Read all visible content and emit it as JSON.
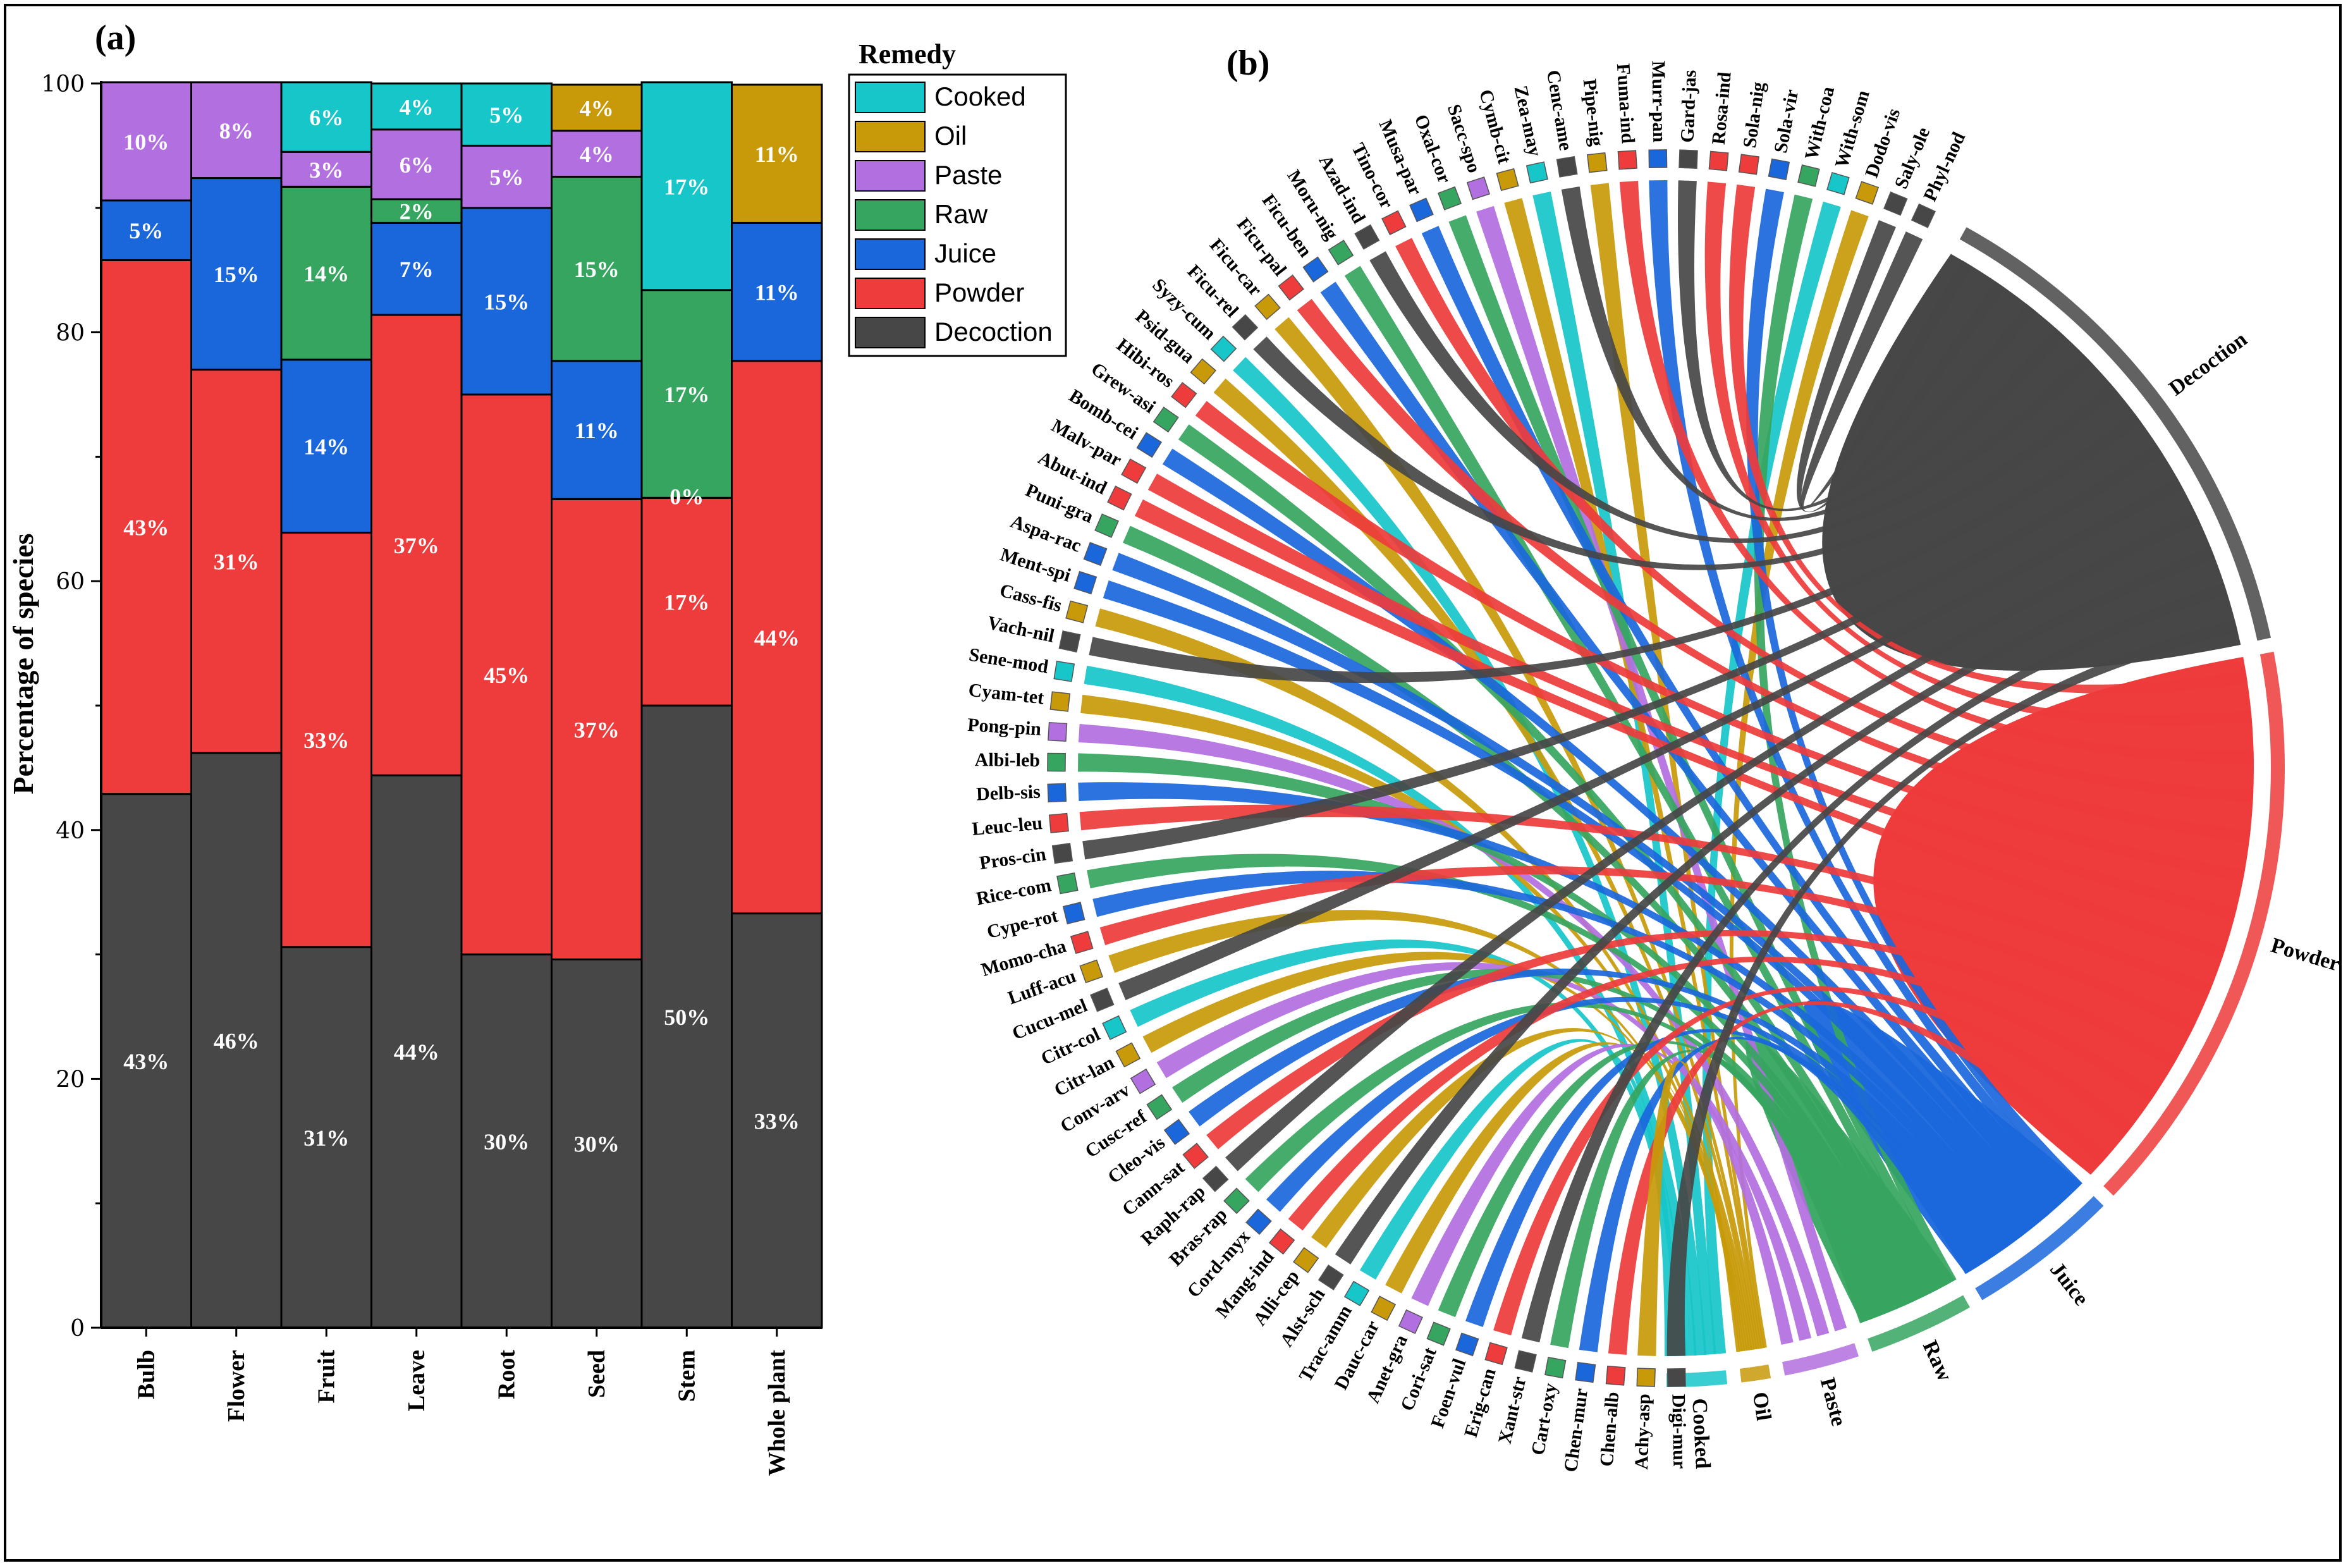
{
  "panel_a": {
    "label": "(a)"
  },
  "panel_b": {
    "label": "(b)"
  },
  "colors": {
    "Cooked": "#17C6C9",
    "Oil": "#C89A0A",
    "Paste": "#B26FE0",
    "Raw": "#36A560",
    "Juice": "#1A67DC",
    "Powder": "#EE3B3B",
    "Decoction": "#474747"
  },
  "chart_data": [
    {
      "type": "bar",
      "stacked": true,
      "title": "",
      "xlabel": "",
      "ylabel": "Percentage of species",
      "ylim": [
        0,
        100
      ],
      "yticks": [
        0,
        20,
        40,
        60,
        80,
        100
      ],
      "categories": [
        "Bulb",
        "Flower",
        "Fruit",
        "Leave",
        "Root",
        "Seed",
        "Stem",
        "Whole plant"
      ],
      "legend_title": "Remedy",
      "legend_position": "top-right",
      "legend": [
        "Cooked",
        "Oil",
        "Paste",
        "Raw",
        "Juice",
        "Powder",
        "Decoction"
      ],
      "series": [
        {
          "name": "Decoction",
          "values": [
            42.9,
            46.2,
            30.6,
            44.4,
            30.0,
            29.6,
            50.0,
            33.3
          ],
          "labels": [
            "43%",
            "46%",
            "31%",
            "44%",
            "30%",
            "30%",
            "50%",
            "33%"
          ]
        },
        {
          "name": "Powder",
          "values": [
            42.9,
            30.8,
            33.3,
            37.0,
            45.0,
            37.0,
            16.7,
            44.4
          ],
          "labels": [
            "43%",
            "31%",
            "33%",
            "37%",
            "45%",
            "37%",
            "17%",
            "44%"
          ]
        },
        {
          "name": "Juice",
          "values": [
            4.8,
            15.4,
            13.9,
            7.4,
            15.0,
            11.1,
            0,
            11.1
          ],
          "labels": [
            "5%",
            "15%",
            "14%",
            "7%",
            "15%",
            "11%",
            "",
            "11%"
          ]
        },
        {
          "name": "Raw",
          "values": [
            0,
            0,
            13.9,
            1.9,
            0,
            14.8,
            16.7,
            0
          ],
          "labels": [
            "",
            "",
            "14%",
            "2%",
            "",
            "15%",
            "17%",
            ""
          ]
        },
        {
          "name": "Paste",
          "values": [
            9.5,
            7.7,
            2.8,
            5.6,
            5.0,
            3.7,
            0,
            0
          ],
          "labels": [
            "10%",
            "8%",
            "3%",
            "6%",
            "5%",
            "4%",
            "",
            ""
          ]
        },
        {
          "name": "Oil",
          "values": [
            0,
            0,
            0,
            0,
            0,
            3.7,
            0,
            11.1
          ],
          "labels": [
            "",
            "",
            "",
            "",
            "",
            "4%",
            "",
            "11%"
          ]
        },
        {
          "name": "Cooked",
          "values": [
            0,
            0,
            5.6,
            3.7,
            5.0,
            0,
            16.7,
            0
          ],
          "labels": [
            "",
            "",
            "6%",
            "4%",
            "5%",
            "",
            "17%",
            ""
          ]
        }
      ],
      "extra_labels": [
        {
          "category": "Stem",
          "text": "0%"
        }
      ]
    },
    {
      "type": "chord",
      "groups": [
        "Decoction",
        "Powder",
        "Juice",
        "Raw",
        "Paste",
        "Oil",
        "Cooked"
      ],
      "group_share": [
        34,
        38,
        10,
        7,
        5,
        2,
        4
      ],
      "species": [
        "Phyl-nod",
        "Saly-ole",
        "Dodo-vis",
        "With-som",
        "With-coa",
        "Sola-vir",
        "Sola-nig",
        "Rosa-ind",
        "Gard-jas",
        "Murr-pan",
        "Fuma-ind",
        "Pipe-nig",
        "Cenc-ame",
        "Zea-may",
        "Cymb-cit",
        "Sacc-spo",
        "Oxal-cor",
        "Musa-par",
        "Tino-cor",
        "Azad-ind",
        "Moru-nig",
        "Ficu-ben",
        "Ficu-pal",
        "Ficu-car",
        "Ficu-rel",
        "Syzy-cum",
        "Psid-gua",
        "Hibi-ros",
        "Grew-asi",
        "Bomb-cei",
        "Malv-par",
        "Abut-ind",
        "Puni-gra",
        "Aspa-rac",
        "Ment-spi",
        "Cass-fis",
        "Vach-nil",
        "Sene-mod",
        "Cyam-tet",
        "Pong-pin",
        "Albi-leb",
        "Delb-sis",
        "Leuc-leu",
        "Pros-cin",
        "Rice-com",
        "Cype-rot",
        "Momo-cha",
        "Luff-acu",
        "Cucu-mel",
        "Citr-col",
        "Citr-lan",
        "Conv-arv",
        "Cusc-ref",
        "Cleo-vis",
        "Cann-sat",
        "Raph-rap",
        "Bras-rap",
        "Cord-myx",
        "Mang-ind",
        "Alli-cep",
        "Alst-sch",
        "Trac-amm",
        "Dauc-car",
        "Anet-gra",
        "Cori-sat",
        "Foen-vul",
        "Erig-can",
        "Xant-str",
        "Cart-oxy",
        "Chen-mur",
        "Chen-alb",
        "Achy-asp",
        "Digi-mur"
      ],
      "species_remedy": [
        "Decoction",
        "Decoction",
        "Oil",
        "Cooked",
        "Raw",
        "Juice",
        "Powder",
        "Powder",
        "Decoction",
        "Juice",
        "Powder",
        "Oil",
        "Decoction",
        "Cooked",
        "Oil",
        "Paste",
        "Raw",
        "Juice",
        "Powder",
        "Decoction",
        "Raw",
        "Juice",
        "Powder",
        "Oil",
        "Decoction",
        "Cooked",
        "Oil",
        "Powder",
        "Raw",
        "Juice",
        "Powder",
        "Powder",
        "Raw",
        "Juice",
        "Juice",
        "Oil",
        "Decoction",
        "Cooked",
        "Oil",
        "Paste",
        "Raw",
        "Juice",
        "Powder",
        "Decoction",
        "Raw",
        "Juice",
        "Powder",
        "Oil",
        "Decoction",
        "Cooked",
        "Oil",
        "Paste",
        "Raw",
        "Juice",
        "Powder",
        "Decoction",
        "Raw",
        "Juice",
        "Powder",
        "Oil",
        "Decoction",
        "Cooked",
        "Oil",
        "Paste",
        "Raw",
        "Juice",
        "Powder",
        "Decoction",
        "Raw",
        "Juice",
        "Powder",
        "Oil",
        "Decoction"
      ]
    }
  ]
}
